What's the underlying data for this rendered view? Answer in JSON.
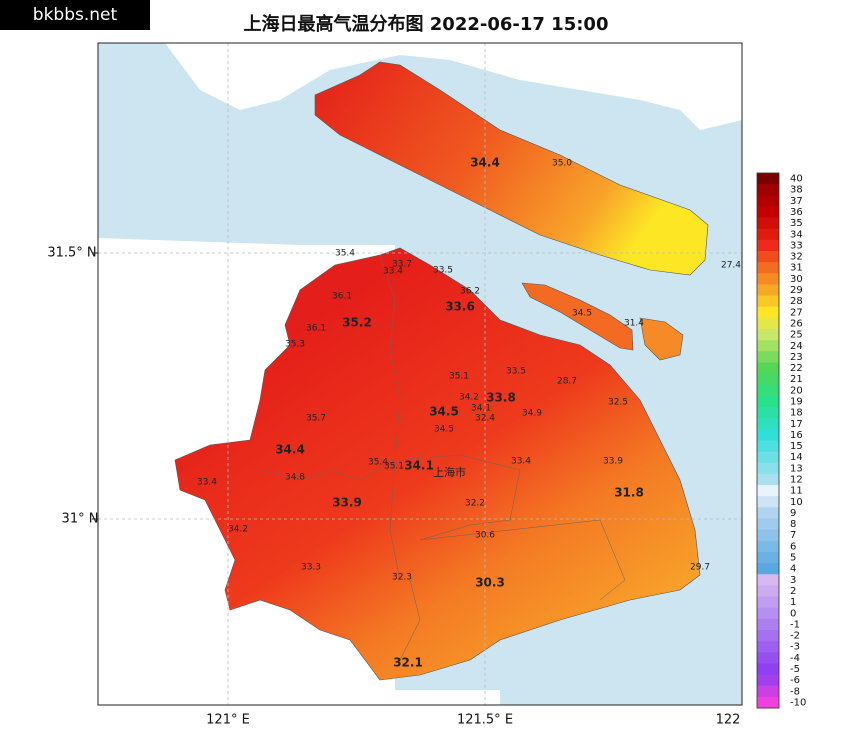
{
  "header": {
    "watermark": "bkbbs.net",
    "title": "上海日最高气温分布图 2022-06-17 15:00"
  },
  "axes": {
    "lat_labels": [
      "31.5° N",
      "31° N"
    ],
    "lon_labels": [
      "121° E",
      "121.5° E",
      "122"
    ]
  },
  "colorbar": {
    "labels": [
      40,
      38,
      37,
      36,
      35,
      34,
      33,
      32,
      31,
      30,
      29,
      28,
      27,
      26,
      25,
      24,
      23,
      22,
      21,
      20,
      19,
      18,
      17,
      16,
      15,
      14,
      13,
      12,
      11,
      10,
      9,
      8,
      7,
      6,
      5,
      4,
      3,
      2,
      1,
      0,
      -1,
      -2,
      -3,
      -4,
      -5,
      -6,
      -8,
      -10
    ]
  },
  "map": {
    "city_label": "上海市",
    "stations": [
      "34.4",
      "35.0",
      "27.4",
      "35.4",
      "33.7",
      "33.4",
      "33.5",
      "36.2",
      "36.1",
      "35.2",
      "33.6",
      "34.5",
      "31.4",
      "36.1",
      "35.3",
      "33.5",
      "35.1",
      "28.7",
      "34.2",
      "33.8",
      "34.1",
      "32.5",
      "34.5",
      "32.4",
      "34.9",
      "35.7",
      "34.5",
      "34.4",
      "35.4",
      "35.1",
      "34.1",
      "33.4",
      "33.9",
      "34.8",
      "33.4",
      "31.8",
      "33.9",
      "32.2",
      "34.2",
      "30.6",
      "33.3",
      "29.7",
      "32.3",
      "30.3",
      "32.1"
    ]
  }
}
